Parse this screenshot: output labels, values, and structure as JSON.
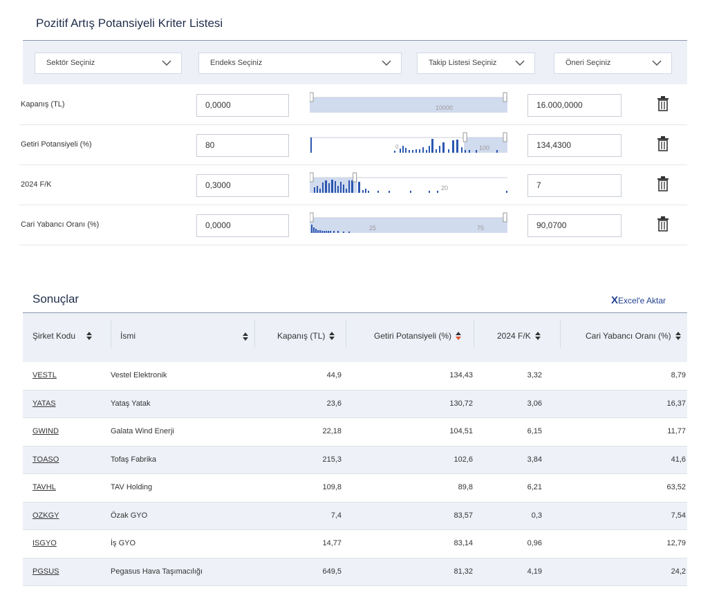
{
  "criteria_title": "Pozitif Artış Potansiyeli Kriter Listesi",
  "filters": {
    "sector": "Sektör Seçiniz",
    "index": "Endeks Seçiniz",
    "watchlist": "Takip Listesi Seçiniz",
    "recommendation": "Öneri Seçiniz"
  },
  "criteria": [
    {
      "label": "Kapanış (TL)",
      "min": "0,0000",
      "max": "16.000,0000",
      "ticks": [
        "10000"
      ],
      "range": [
        0.0,
        1.0
      ]
    },
    {
      "label": "Getiri Potansiyeli (%)",
      "min": "80",
      "max": "134,4300",
      "ticks": [
        "0",
        "100"
      ],
      "range": [
        0.78,
        1.0
      ]
    },
    {
      "label": "2024 F/K",
      "min": "0,3000",
      "max": "7",
      "ticks": [
        "20"
      ],
      "range": [
        0.0,
        0.24
      ]
    },
    {
      "label": "Cari Yabancı Oranı (%)",
      "min": "0,0000",
      "max": "90,0700",
      "ticks": [
        "25",
        "75"
      ],
      "range": [
        0.0,
        1.0
      ]
    }
  ],
  "results_title": "Sonuçlar",
  "export_x": "X",
  "export_label": "Excel'e Aktar",
  "columns": [
    "Şirket Kodu",
    "İsmi",
    "Kapanış (TL)",
    "Getiri Potansiyeli (%)",
    "2024 F/K",
    "Cari Yabancı Oranı (%)"
  ],
  "rows": [
    {
      "code": "VESTL",
      "name": "Vestel Elektronik",
      "close": "44,9",
      "potential": "134,43",
      "pe": "3,32",
      "foreign": "8,79"
    },
    {
      "code": "YATAS",
      "name": "Yataş Yatak",
      "close": "23,6",
      "potential": "130,72",
      "pe": "3,06",
      "foreign": "16,37"
    },
    {
      "code": "GWIND",
      "name": "Galata Wind Enerji",
      "close": "22,18",
      "potential": "104,51",
      "pe": "6,15",
      "foreign": "11,77"
    },
    {
      "code": "TOASO",
      "name": "Tofaş Fabrika",
      "close": "215,3",
      "potential": "102,6",
      "pe": "3,84",
      "foreign": "41,6"
    },
    {
      "code": "TAVHL",
      "name": "TAV Holding",
      "close": "109,8",
      "potential": "89,8",
      "pe": "6,21",
      "foreign": "63,52"
    },
    {
      "code": "OZKGY",
      "name": "Özak GYO",
      "close": "7,4",
      "potential": "83,57",
      "pe": "0,3",
      "foreign": "7,54"
    },
    {
      "code": "ISGYO",
      "name": "İş GYO",
      "close": "14,77",
      "potential": "83,14",
      "pe": "0,96",
      "foreign": "12,79"
    },
    {
      "code": "PGSUS",
      "name": "Pegasus Hava Taşımacılığı",
      "close": "649,5",
      "potential": "81,32",
      "pe": "4,19",
      "foreign": "24,2"
    }
  ],
  "colors": {
    "accent": "#1f3f8f",
    "bar": "#2a56b0",
    "sort_active": "#e0502a",
    "panel": "#edf0f7"
  }
}
